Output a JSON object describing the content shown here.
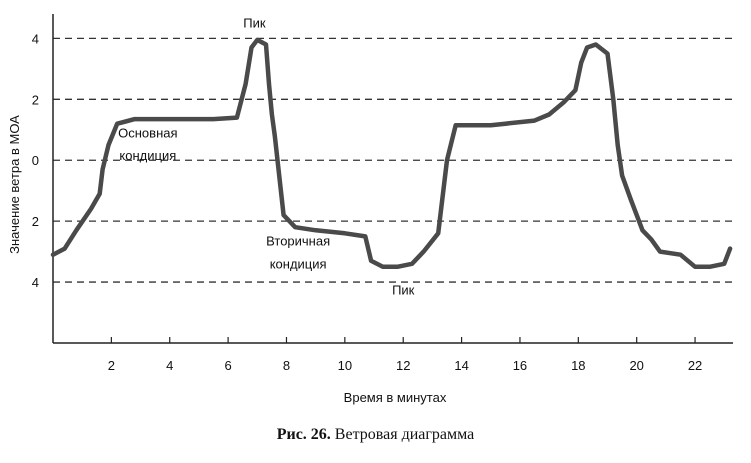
{
  "chart_data": {
    "type": "line",
    "title": "",
    "xlabel": "Время в минутах",
    "ylabel": "Значение ветра в МОА",
    "xlim": [
      0,
      23.3
    ],
    "ylim": [
      -6,
      4.8
    ],
    "x_ticks": [
      2,
      4,
      6,
      8,
      10,
      12,
      14,
      16,
      18,
      20,
      22
    ],
    "x_tick_labels": [
      "2",
      "4",
      "6",
      "8",
      "10",
      "12",
      "14",
      "16",
      "18",
      "20",
      "22"
    ],
    "y_ticks": [
      4,
      2,
      0,
      -2,
      -4
    ],
    "y_tick_labels": [
      "4",
      "2",
      "0",
      "2",
      "4"
    ],
    "grid": "dashed horizontal lines at 4, 2, 0, -2, -4",
    "series": [
      {
        "color": "#4a4a4a",
        "x": [
          0,
          0.4,
          0.8,
          1.3,
          1.6,
          1.7,
          1.9,
          2.2,
          2.8,
          3.5,
          4.5,
          5.5,
          6.3,
          6.6,
          6.8,
          7.0,
          7.3,
          7.4,
          7.5,
          7.6,
          7.9,
          8.3,
          9,
          10,
          10.7,
          10.9,
          11.3,
          11.8,
          12.3,
          12.7,
          13.2,
          13.5,
          13.8,
          14.5,
          15,
          15.5,
          16.5,
          17,
          17.5,
          17.9,
          18.1,
          18.3,
          18.6,
          19.0,
          19.2,
          19.35,
          19.5,
          19.8,
          20.2,
          20.5,
          20.8,
          21.5,
          22,
          22.5,
          23.0,
          23.2
        ],
        "y": [
          -3.1,
          -2.9,
          -2.3,
          -1.6,
          -1.1,
          -0.3,
          0.5,
          1.2,
          1.35,
          1.35,
          1.35,
          1.35,
          1.4,
          2.5,
          3.7,
          3.95,
          3.8,
          2.5,
          1.5,
          0.8,
          -1.8,
          -2.2,
          -2.3,
          -2.4,
          -2.5,
          -3.3,
          -3.5,
          -3.5,
          -3.4,
          -3.0,
          -2.4,
          0.0,
          1.15,
          1.15,
          1.15,
          1.2,
          1.3,
          1.5,
          1.9,
          2.3,
          3.2,
          3.7,
          3.8,
          3.5,
          2.0,
          0.5,
          -0.5,
          -1.3,
          -2.3,
          -2.6,
          -3.0,
          -3.1,
          -3.5,
          -3.5,
          -3.4,
          -2.9
        ]
      }
    ],
    "annotations": [
      {
        "text": "Пик",
        "x": 6.9,
        "y": 4.35
      },
      {
        "text": "Основная",
        "x": 3.25,
        "y": 0.75
      },
      {
        "text": "кондиция",
        "x": 3.25,
        "y": 0.0
      },
      {
        "text": "Вторичная",
        "x": 8.4,
        "y": -2.8
      },
      {
        "text": "кондиция",
        "x": 8.4,
        "y": -3.55
      },
      {
        "text": "Пик",
        "x": 12,
        "y": -4.4
      }
    ]
  },
  "caption": {
    "label": "Рис. 26.",
    "text": " Ветровая диаграмма"
  }
}
